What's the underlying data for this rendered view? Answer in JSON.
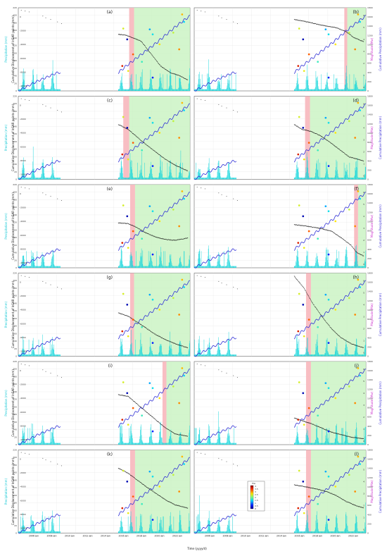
{
  "figure": {
    "left_axis_title": "Precipitation (mm)",
    "left_inner_axis_title": "Cumulative Displacement of InSAR points (mm)",
    "right_inner_axis_title": "Magnitude (Mw)",
    "right_axis_title": "Cumulative Precipitation (mm)",
    "x_axis_title": "Time (yyyy/d)",
    "colorbar_title": "Mw",
    "colorbar_ticks": [
      "4",
      "3.5",
      "3",
      "2.5",
      "2",
      "1.5",
      "1",
      "0.5",
      "0"
    ]
  },
  "chart_data": {
    "type": "line",
    "x_tick_labels": [
      "2006 Jan",
      "2008 Jan",
      "2010 Jan",
      "2012 Jan",
      "2014 Jan",
      "2016 Jan",
      "2018 Jan",
      "2020 Jan",
      "2022 Jan"
    ],
    "x_range": [
      2006,
      2023.5
    ],
    "left_ticks": [
      "0",
      "20",
      "40",
      "60",
      "80",
      "100",
      "120",
      "140",
      "160",
      "180",
      "200",
      "220"
    ],
    "inner_left_ticks": [
      "-10000",
      "-8000",
      "-6000",
      "-4000",
      "-2000",
      "0"
    ],
    "inner_right_ticks": [
      "0",
      "1",
      "2",
      "3",
      "4",
      "5",
      "6"
    ],
    "right_ticks": [
      "0",
      "200",
      "400",
      "600",
      "800",
      "1000",
      "1200",
      "1400",
      "1600",
      "1800"
    ],
    "colors": {
      "precipitation": "#11d6dc",
      "cumulative": "#2f2fd6",
      "displacement": "#111111",
      "red_window": "#f7b7bd",
      "green_window": "#c8f3c0",
      "left_axis": "#11c7d4",
      "right_axis": "#cc33cc"
    },
    "panels": [
      {
        "label": "(a)",
        "red_window": [
          2017.3,
          2017.8
        ],
        "green_window": [
          2017.8,
          2023.5
        ],
        "disp_anchor": [
          [
            2016.2,
            0.68
          ],
          [
            2017.0,
            0.67
          ],
          [
            2018.5,
            0.6
          ],
          [
            2019.5,
            0.45
          ],
          [
            2020.5,
            0.3
          ],
          [
            2021.5,
            0.22
          ],
          [
            2022.5,
            0.18
          ],
          [
            2023.3,
            0.13
          ]
        ]
      },
      {
        "label": "(b)",
        "red_window": [
          2021.3,
          2021.6
        ],
        "green_window": [
          2021.6,
          2023.5
        ],
        "disp_anchor": [
          [
            2016.2,
            0.86
          ],
          [
            2017.5,
            0.83
          ],
          [
            2019.0,
            0.79
          ],
          [
            2020.5,
            0.76
          ],
          [
            2021.5,
            0.71
          ],
          [
            2022.3,
            0.64
          ],
          [
            2023.3,
            0.59
          ]
        ]
      },
      {
        "label": "(c)",
        "red_window": [
          2016.7,
          2017.3
        ],
        "green_window": [
          2017.3,
          2023.5
        ],
        "disp_anchor": [
          [
            2016.2,
            0.66
          ],
          [
            2017.2,
            0.6
          ],
          [
            2018.0,
            0.52
          ],
          [
            2019.0,
            0.42
          ],
          [
            2020.0,
            0.33
          ],
          [
            2021.0,
            0.24
          ],
          [
            2022.0,
            0.17
          ],
          [
            2023.3,
            0.1
          ]
        ]
      },
      {
        "label": "(d)",
        "red_window": [
          2017.3,
          2017.8
        ],
        "green_window": [
          2017.8,
          2023.5
        ],
        "disp_anchor": [
          [
            2016.2,
            0.66
          ],
          [
            2017.0,
            0.6
          ],
          [
            2017.8,
            0.58
          ],
          [
            2018.8,
            0.53
          ],
          [
            2019.8,
            0.45
          ],
          [
            2020.8,
            0.36
          ],
          [
            2021.8,
            0.27
          ],
          [
            2023.3,
            0.22
          ]
        ]
      },
      {
        "label": "(e)",
        "red_window": [
          2017.4,
          2017.9
        ],
        "green_window": [
          2017.9,
          2023.5
        ],
        "disp_anchor": [
          [
            2016.2,
            0.54
          ],
          [
            2017.2,
            0.53
          ],
          [
            2018.0,
            0.49
          ],
          [
            2019.0,
            0.42
          ],
          [
            2020.0,
            0.37
          ],
          [
            2021.0,
            0.34
          ],
          [
            2022.0,
            0.33
          ],
          [
            2023.3,
            0.36
          ]
        ]
      },
      {
        "label": "(f)",
        "red_window": [
          2022.3,
          2022.7
        ],
        "green_window": [
          2022.7,
          2023.5
        ],
        "disp_anchor": [
          [
            2016.2,
            0.52
          ],
          [
            2017.5,
            0.5
          ],
          [
            2019.0,
            0.47
          ],
          [
            2020.0,
            0.44
          ],
          [
            2021.0,
            0.36
          ],
          [
            2022.0,
            0.27
          ],
          [
            2022.6,
            0.18
          ],
          [
            2023.3,
            0.14
          ]
        ]
      },
      {
        "label": "(g)",
        "red_window": [
          2017.4,
          2017.8
        ],
        "green_window": [
          2017.8,
          2023.5
        ],
        "disp_anchor": [
          [
            2016.2,
            0.52
          ],
          [
            2017.2,
            0.48
          ],
          [
            2018.0,
            0.42
          ],
          [
            2019.0,
            0.34
          ],
          [
            2020.0,
            0.26
          ],
          [
            2021.0,
            0.2
          ],
          [
            2022.0,
            0.15
          ],
          [
            2023.3,
            0.1
          ]
        ]
      },
      {
        "label": "(h)",
        "red_window": [
          2017.4,
          2017.9
        ],
        "green_window": [
          2017.9,
          2023.5
        ],
        "disp_anchor": [
          [
            2016.2,
            0.96
          ],
          [
            2017.2,
            0.82
          ],
          [
            2018.0,
            0.65
          ],
          [
            2019.0,
            0.48
          ],
          [
            2020.0,
            0.33
          ],
          [
            2021.0,
            0.22
          ],
          [
            2022.0,
            0.15
          ],
          [
            2023.3,
            0.1
          ]
        ]
      },
      {
        "label": "(i)",
        "red_window": [
          2020.7,
          2021.1
        ],
        "green_window": [
          2021.1,
          2023.5
        ],
        "disp_anchor": [
          [
            2016.2,
            0.6
          ],
          [
            2017.2,
            0.58
          ],
          [
            2018.0,
            0.5
          ],
          [
            2019.0,
            0.4
          ],
          [
            2020.0,
            0.3
          ],
          [
            2021.0,
            0.2
          ],
          [
            2022.0,
            0.13
          ],
          [
            2023.3,
            0.1
          ]
        ]
      },
      {
        "label": "(j)",
        "red_window": [
          2017.4,
          2017.9
        ],
        "green_window": [
          2017.9,
          2023.5
        ],
        "disp_anchor": [
          [
            2016.2,
            0.32
          ],
          [
            2017.2,
            0.28
          ],
          [
            2018.0,
            0.25
          ],
          [
            2019.0,
            0.2
          ],
          [
            2020.0,
            0.15
          ],
          [
            2021.0,
            0.12
          ],
          [
            2022.0,
            0.09
          ],
          [
            2023.3,
            0.07
          ]
        ]
      },
      {
        "label": "(k)",
        "red_window": [
          2017.4,
          2017.9
        ],
        "green_window": [
          2017.9,
          2023.5
        ],
        "disp_anchor": [
          [
            2016.2,
            0.78
          ],
          [
            2017.2,
            0.72
          ],
          [
            2018.0,
            0.65
          ],
          [
            2019.0,
            0.56
          ],
          [
            2020.0,
            0.48
          ],
          [
            2021.0,
            0.4
          ],
          [
            2022.0,
            0.34
          ],
          [
            2023.3,
            0.3
          ]
        ]
      },
      {
        "label": "(l)",
        "red_window": [
          2017.4,
          2017.9
        ],
        "green_window": [
          2017.9,
          2023.5
        ],
        "disp_anchor": [
          [
            2016.2,
            0.58
          ],
          [
            2017.2,
            0.56
          ],
          [
            2018.5,
            0.53
          ],
          [
            2019.5,
            0.5
          ],
          [
            2020.5,
            0.45
          ],
          [
            2021.5,
            0.38
          ],
          [
            2022.5,
            0.33
          ],
          [
            2023.3,
            0.3
          ]
        ]
      }
    ],
    "cumulative_anchor": [
      [
        2006.0,
        0.0
      ],
      [
        2007.0,
        0.06
      ],
      [
        2008.0,
        0.12
      ],
      [
        2009.0,
        0.17
      ],
      [
        2010.0,
        0.22
      ],
      [
        2016.2,
        0.22
      ],
      [
        2017.0,
        0.3
      ],
      [
        2018.0,
        0.39
      ],
      [
        2019.0,
        0.48
      ],
      [
        2020.0,
        0.57
      ],
      [
        2021.0,
        0.67
      ],
      [
        2022.0,
        0.77
      ],
      [
        2023.0,
        0.86
      ],
      [
        2023.5,
        0.9
      ]
    ],
    "early_disp_points": [
      [
        2006.3,
        0.97
      ],
      [
        2006.7,
        0.96
      ],
      [
        2007.1,
        0.95
      ],
      [
        2008.5,
        0.9
      ],
      [
        2008.8,
        0.88
      ],
      [
        2009.3,
        0.86
      ],
      [
        2010.0,
        0.83
      ],
      [
        2010.4,
        0.81
      ]
    ],
    "earthquakes": [
      {
        "t": 2016.7,
        "y": 0.75,
        "mw": 2.4
      },
      {
        "t": 2017.1,
        "y": 0.62,
        "mw": 0.2
      },
      {
        "t": 2016.6,
        "y": 0.3,
        "mw": 3.6
      },
      {
        "t": 2017.2,
        "y": 0.24,
        "mw": 2.5
      },
      {
        "t": 2017.7,
        "y": 0.44,
        "mw": 3.2
      },
      {
        "t": 2018.6,
        "y": 0.35,
        "mw": 1.7
      },
      {
        "t": 2019.4,
        "y": 0.74,
        "mw": 1.2
      },
      {
        "t": 2019.7,
        "y": 0.68,
        "mw": 1.5
      },
      {
        "t": 2020.4,
        "y": 0.56,
        "mw": 2.6
      },
      {
        "t": 2019.7,
        "y": 0.16,
        "mw": 0.6
      },
      {
        "t": 2021.8,
        "y": 0.7,
        "mw": 2.3
      },
      {
        "t": 2022.7,
        "y": 0.92,
        "mw": 2.8
      },
      {
        "t": 2022.9,
        "y": 0.83,
        "mw": 1.4
      },
      {
        "t": 2022.4,
        "y": 0.5,
        "mw": 3.0
      }
    ]
  }
}
